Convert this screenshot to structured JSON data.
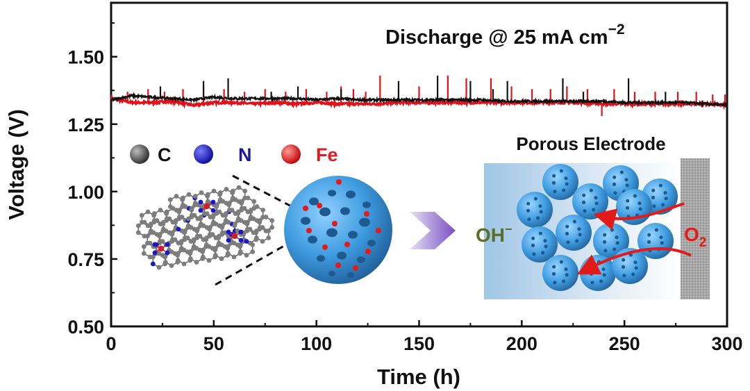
{
  "chart_data": {
    "type": "line",
    "title": "",
    "annotation_main": "Discharge @ 25 mA cm",
    "annotation_exponent": "−2",
    "xlabel": "Time (h)",
    "ylabel": "Voltage (V)",
    "xlim": [
      0,
      300
    ],
    "ylim": [
      0.5,
      1.7
    ],
    "xticks": [
      0,
      50,
      100,
      150,
      200,
      250,
      300
    ],
    "xtick_labels": [
      "0",
      "50",
      "100",
      "150",
      "200",
      "250",
      "300"
    ],
    "yticks": [
      0.5,
      0.75,
      1.0,
      1.25,
      1.5
    ],
    "ytick_labels": [
      "0.50",
      "0.75",
      "1.00",
      "1.25",
      "1.50"
    ],
    "grid": false,
    "series": [
      {
        "color": "#e3101a",
        "x": [
          0,
          10,
          20,
          30,
          40,
          50,
          60,
          70,
          80,
          90,
          100,
          110,
          120,
          130,
          140,
          150,
          160,
          170,
          180,
          190,
          200,
          210,
          220,
          230,
          240,
          250,
          260,
          270,
          280,
          290,
          300
        ],
        "y": [
          1.345,
          1.33,
          1.33,
          1.335,
          1.32,
          1.33,
          1.33,
          1.325,
          1.33,
          1.325,
          1.33,
          1.325,
          1.325,
          1.325,
          1.33,
          1.33,
          1.33,
          1.33,
          1.33,
          1.33,
          1.33,
          1.33,
          1.33,
          1.33,
          1.325,
          1.325,
          1.325,
          1.325,
          1.325,
          1.325,
          1.32
        ],
        "spikes": [
          [
            8,
            1.37
          ],
          [
            18,
            1.38
          ],
          [
            26,
            1.37
          ],
          [
            35,
            1.38
          ],
          [
            45,
            1.39
          ],
          [
            55,
            1.38
          ],
          [
            65,
            1.37
          ],
          [
            75,
            1.38
          ],
          [
            85,
            1.37
          ],
          [
            95,
            1.38
          ],
          [
            105,
            1.37
          ],
          [
            112,
            1.39
          ],
          [
            118,
            1.38
          ],
          [
            124,
            1.37
          ],
          [
            131,
            1.43
          ],
          [
            140,
            1.38
          ],
          [
            150,
            1.39
          ],
          [
            164,
            1.43
          ],
          [
            173,
            1.42
          ],
          [
            185,
            1.42
          ],
          [
            195,
            1.39
          ],
          [
            205,
            1.38
          ],
          [
            214,
            1.38
          ],
          [
            222,
            1.39
          ],
          [
            232,
            1.38
          ],
          [
            245,
            1.38
          ],
          [
            255,
            1.37
          ],
          [
            265,
            1.37
          ],
          [
            276,
            1.37
          ],
          [
            285,
            1.37
          ],
          [
            293,
            1.36
          ],
          [
            299,
            1.36
          ],
          [
            239,
            1.28
          ]
        ]
      },
      {
        "color": "#111111",
        "x": [
          0,
          10,
          20,
          30,
          40,
          50,
          60,
          70,
          80,
          90,
          100,
          110,
          120,
          130,
          140,
          150,
          160,
          170,
          180,
          190,
          200,
          210,
          220,
          230,
          240,
          250,
          260,
          270,
          280,
          290,
          300
        ],
        "y": [
          1.34,
          1.355,
          1.35,
          1.345,
          1.34,
          1.35,
          1.345,
          1.345,
          1.345,
          1.345,
          1.34,
          1.345,
          1.34,
          1.34,
          1.34,
          1.34,
          1.34,
          1.34,
          1.34,
          1.335,
          1.335,
          1.335,
          1.335,
          1.335,
          1.335,
          1.33,
          1.33,
          1.33,
          1.33,
          1.325,
          1.32
        ],
        "spikes": [
          [
            24,
            1.39
          ],
          [
            45,
            1.41
          ],
          [
            57,
            1.42
          ],
          [
            78,
            1.37
          ],
          [
            91,
            1.39
          ],
          [
            112,
            1.38
          ],
          [
            140,
            1.41
          ],
          [
            159,
            1.43
          ],
          [
            175,
            1.41
          ],
          [
            186,
            1.38
          ],
          [
            193,
            1.41
          ],
          [
            220,
            1.42
          ],
          [
            230,
            1.37
          ],
          [
            252,
            1.42
          ],
          [
            270,
            1.37
          ]
        ]
      }
    ]
  },
  "inset": {
    "legend": [
      {
        "label": "C",
        "color": "#3a3a3a",
        "text_color": "#111111"
      },
      {
        "label": "N",
        "color": "#1717c8",
        "text_color": "#1a1aa0"
      },
      {
        "label": "Fe",
        "color": "#e82222",
        "text_color": "#e31a1a"
      }
    ],
    "electrode_title": "Porous Electrode",
    "oh_label": "OH",
    "oh_superscript": "−",
    "o2_label": "O",
    "o2_subscript": "2"
  },
  "colors": {
    "sphere": "#3f9ce0",
    "red_series": "#e3101a",
    "black_series": "#111111",
    "oh_text": "#5a6e2a",
    "o2_text": "#e31a1a"
  }
}
